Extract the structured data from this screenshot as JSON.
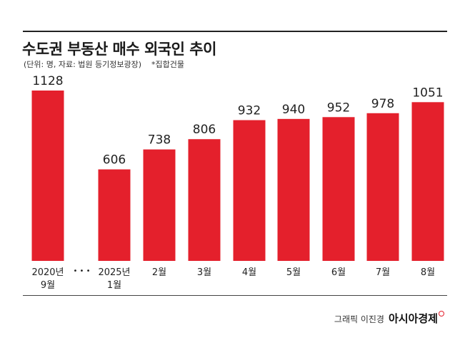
{
  "header": {
    "title": "수도권 부동산 매수 외국인 추이",
    "unit_note": "(단위: 명, 자료: 법원 등기정보광장)",
    "footnote": "*집합건물"
  },
  "footer": {
    "credit": "그래픽 이진경",
    "brand": "아시아경제"
  },
  "colors": {
    "bar": "#e4202c",
    "text": "#222222",
    "rule": "#222222"
  },
  "chart_data": {
    "type": "bar",
    "categories": [
      [
        "2020년",
        "9월"
      ],
      [
        "2025년",
        "1월"
      ],
      [
        "2월"
      ],
      [
        "3월"
      ],
      [
        "4월"
      ],
      [
        "5월"
      ],
      [
        "6월"
      ],
      [
        "7월"
      ],
      [
        "8월"
      ]
    ],
    "values": [
      1128,
      606,
      738,
      806,
      932,
      940,
      952,
      978,
      1051
    ],
    "axis_break_after_index": 0,
    "axis_break_symbol": "• • •",
    "ylim": [
      0,
      1128
    ],
    "grid": false,
    "legend": "none"
  }
}
